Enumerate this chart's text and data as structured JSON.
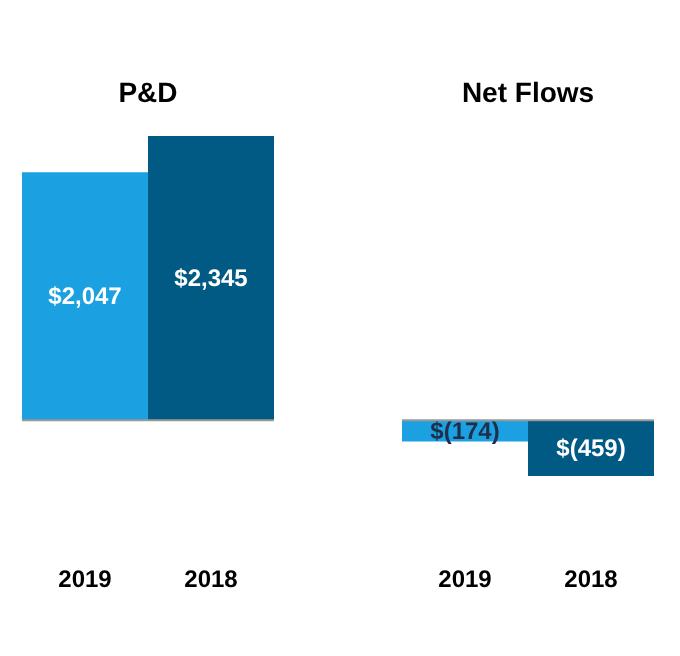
{
  "chart_data": [
    {
      "type": "bar",
      "title": "P&D",
      "categories": [
        "2019",
        "2018"
      ],
      "values": [
        2047,
        2345
      ],
      "colors": [
        "#1ba1e2",
        "#005a84"
      ],
      "value_labels": [
        "$2,047",
        "$2,345"
      ],
      "tick_labels": "x"
    },
    {
      "type": "bar",
      "title": "Net Flows",
      "categories": [
        "2019",
        "2018"
      ],
      "values": [
        -174,
        -459
      ],
      "colors": [
        "#1ba1e2",
        "#005a84"
      ],
      "value_labels": [
        "$(174)",
        "$(459)"
      ],
      "tick_labels": "x"
    }
  ]
}
